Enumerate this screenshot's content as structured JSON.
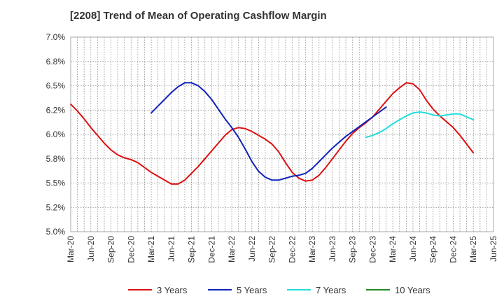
{
  "chart_data": {
    "type": "line",
    "title": "[2208]  Trend of Mean of Operating Cashflow Margin",
    "xlabel": "",
    "ylabel": "",
    "ylim": [
      5.0,
      7.0
    ],
    "y_ticks": [
      "5.0%",
      "5.2%",
      "5.5%",
      "5.8%",
      "6.0%",
      "6.2%",
      "6.5%",
      "6.8%",
      "7.0%"
    ],
    "x_ticks": [
      "Mar-20",
      "Jun-20",
      "Sep-20",
      "Dec-20",
      "Mar-21",
      "Jun-21",
      "Sep-21",
      "Dec-21",
      "Mar-22",
      "Jun-22",
      "Sep-22",
      "Dec-22",
      "Mar-23",
      "Jun-23",
      "Sep-23",
      "Dec-23",
      "Mar-24",
      "Jun-24",
      "Sep-24",
      "Dec-24",
      "Mar-25",
      "Jun-25"
    ],
    "grid": true,
    "legend_position": "bottom",
    "series": [
      {
        "name": "3 Years",
        "color": "#dd1111",
        "points": [
          [
            "Mar-20",
            6.31
          ],
          [
            "Apr-20",
            6.24
          ],
          [
            "May-20",
            6.16
          ],
          [
            "Jun-20",
            6.07
          ],
          [
            "Jul-20",
            5.99
          ],
          [
            "Aug-20",
            5.91
          ],
          [
            "Sep-20",
            5.84
          ],
          [
            "Oct-20",
            5.79
          ],
          [
            "Nov-20",
            5.76
          ],
          [
            "Dec-20",
            5.74
          ],
          [
            "Jan-21",
            5.71
          ],
          [
            "Feb-21",
            5.66
          ],
          [
            "Mar-21",
            5.61
          ],
          [
            "Apr-21",
            5.57
          ],
          [
            "May-21",
            5.53
          ],
          [
            "Jun-21",
            5.49
          ],
          [
            "Jul-21",
            5.49
          ],
          [
            "Aug-21",
            5.53
          ],
          [
            "Sep-21",
            5.6
          ],
          [
            "Oct-21",
            5.67
          ],
          [
            "Nov-21",
            5.75
          ],
          [
            "Dec-21",
            5.83
          ],
          [
            "Jan-22",
            5.91
          ],
          [
            "Feb-22",
            5.99
          ],
          [
            "Mar-22",
            6.05
          ],
          [
            "Apr-22",
            6.07
          ],
          [
            "May-22",
            6.06
          ],
          [
            "Jun-22",
            6.03
          ],
          [
            "Jul-22",
            5.99
          ],
          [
            "Aug-22",
            5.95
          ],
          [
            "Sep-22",
            5.9
          ],
          [
            "Oct-22",
            5.82
          ],
          [
            "Nov-22",
            5.71
          ],
          [
            "Dec-22",
            5.61
          ],
          [
            "Jan-23",
            5.55
          ],
          [
            "Feb-23",
            5.52
          ],
          [
            "Mar-23",
            5.53
          ],
          [
            "Apr-23",
            5.58
          ],
          [
            "May-23",
            5.66
          ],
          [
            "Jun-23",
            5.75
          ],
          [
            "Jul-23",
            5.84
          ],
          [
            "Aug-23",
            5.93
          ],
          [
            "Sep-23",
            6.01
          ],
          [
            "Oct-23",
            6.07
          ],
          [
            "Nov-23",
            6.12
          ],
          [
            "Dec-23",
            6.18
          ],
          [
            "Jan-24",
            6.26
          ],
          [
            "Feb-24",
            6.34
          ],
          [
            "Mar-24",
            6.42
          ],
          [
            "Apr-24",
            6.48
          ],
          [
            "May-24",
            6.53
          ],
          [
            "Jun-24",
            6.52
          ],
          [
            "Jul-24",
            6.46
          ],
          [
            "Aug-24",
            6.35
          ],
          [
            "Sep-24",
            6.26
          ],
          [
            "Oct-24",
            6.19
          ],
          [
            "Nov-24",
            6.13
          ],
          [
            "Dec-24",
            6.07
          ],
          [
            "Jan-25",
            5.99
          ],
          [
            "Feb-25",
            5.9
          ],
          [
            "Mar-25",
            5.81
          ]
        ]
      },
      {
        "name": "5 Years",
        "color": "#1122bb",
        "points": [
          [
            "Mar-21",
            6.22
          ],
          [
            "Apr-21",
            6.29
          ],
          [
            "May-21",
            6.36
          ],
          [
            "Jun-21",
            6.43
          ],
          [
            "Jul-21",
            6.49
          ],
          [
            "Aug-21",
            6.53
          ],
          [
            "Sep-21",
            6.53
          ],
          [
            "Oct-21",
            6.5
          ],
          [
            "Nov-21",
            6.44
          ],
          [
            "Dec-21",
            6.36
          ],
          [
            "Jan-22",
            6.26
          ],
          [
            "Feb-22",
            6.16
          ],
          [
            "Mar-22",
            6.07
          ],
          [
            "Apr-22",
            5.97
          ],
          [
            "May-22",
            5.85
          ],
          [
            "Jun-22",
            5.72
          ],
          [
            "Jul-22",
            5.62
          ],
          [
            "Aug-22",
            5.56
          ],
          [
            "Sep-22",
            5.53
          ],
          [
            "Oct-22",
            5.53
          ],
          [
            "Nov-22",
            5.55
          ],
          [
            "Dec-22",
            5.57
          ],
          [
            "Jan-23",
            5.58
          ],
          [
            "Feb-23",
            5.6
          ],
          [
            "Mar-23",
            5.65
          ],
          [
            "Apr-23",
            5.72
          ],
          [
            "May-23",
            5.79
          ],
          [
            "Jun-23",
            5.86
          ],
          [
            "Jul-23",
            5.92
          ],
          [
            "Aug-23",
            5.98
          ],
          [
            "Sep-23",
            6.03
          ],
          [
            "Oct-23",
            6.08
          ],
          [
            "Nov-23",
            6.13
          ],
          [
            "Dec-23",
            6.18
          ],
          [
            "Jan-24",
            6.23
          ],
          [
            "Feb-24",
            6.28
          ]
        ]
      },
      {
        "name": "7 Years",
        "color": "#22dddd",
        "points": [
          [
            "Nov-23",
            5.97
          ],
          [
            "Dec-23",
            5.99
          ],
          [
            "Jan-24",
            6.02
          ],
          [
            "Feb-24",
            6.06
          ],
          [
            "Mar-24",
            6.11
          ],
          [
            "Apr-24",
            6.15
          ],
          [
            "May-24",
            6.19
          ],
          [
            "Jun-24",
            6.22
          ],
          [
            "Jul-24",
            6.23
          ],
          [
            "Aug-24",
            6.22
          ],
          [
            "Sep-24",
            6.2
          ],
          [
            "Oct-24",
            6.19
          ],
          [
            "Nov-24",
            6.2
          ],
          [
            "Dec-24",
            6.21
          ],
          [
            "Jan-25",
            6.21
          ],
          [
            "Feb-25",
            6.18
          ],
          [
            "Mar-25",
            6.15
          ]
        ]
      },
      {
        "name": "10 Years",
        "color": "#228822",
        "points": []
      }
    ]
  }
}
